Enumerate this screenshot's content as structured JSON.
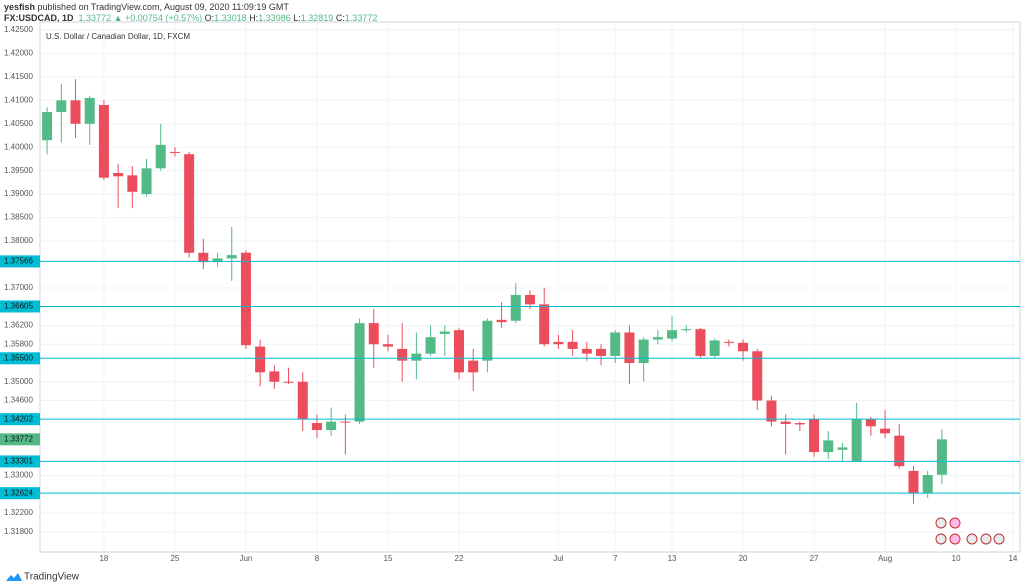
{
  "header": {
    "publisher": "yesfish",
    "published": "published on TradingView.com, August 09, 2020 11:09:19 GMT",
    "symbol": "FX:USDCAD, 1D",
    "arrow": "▲",
    "change": "+0.00754 (+0.57%)",
    "o": "O:",
    "h": "H:",
    "l": "L:",
    "c": "C:"
  },
  "footer": {
    "brand": "TradingView"
  },
  "chart_data": {
    "type": "candlestick",
    "title": "U.S. Dollar / Canadian Dollar, 1D, FXCM",
    "up_color": "#53b987",
    "down_color": "#eb4d5c",
    "grid": true,
    "open": [
      1.4015,
      1.4075,
      1.41,
      1.405,
      1.409,
      1.3945,
      1.394,
      1.39,
      1.3955,
      1.399,
      1.3985,
      1.3775,
      1.3755,
      1.3763,
      1.3775,
      1.3575,
      1.3522,
      1.35,
      1.35,
      1.3412,
      1.3397,
      1.3415,
      1.3415,
      1.3625,
      1.358,
      1.357,
      1.3545,
      1.356,
      1.3602,
      1.361,
      1.3545,
      1.3545,
      1.3632,
      1.363,
      1.3685,
      1.3665,
      1.3585,
      1.3585,
      1.357,
      1.357,
      1.3555,
      1.3605,
      1.354,
      1.359,
      1.3592,
      1.361,
      1.3612,
      1.3555,
      1.3585,
      1.3583,
      1.3565,
      1.346,
      1.3415,
      1.3412,
      1.342,
      1.335,
      1.3355,
      1.333,
      1.342,
      1.34,
      1.3385,
      1.331,
      1.3262,
      1.33018
    ],
    "high": [
      1.4085,
      1.4135,
      1.4145,
      1.411,
      1.41,
      1.3965,
      1.396,
      1.3975,
      1.405,
      1.4,
      1.399,
      1.3805,
      1.3775,
      1.383,
      1.378,
      1.359,
      1.3535,
      1.353,
      1.352,
      1.343,
      1.3445,
      1.343,
      1.3635,
      1.3655,
      1.36,
      1.3625,
      1.3605,
      1.362,
      1.362,
      1.3615,
      1.357,
      1.3635,
      1.367,
      1.371,
      1.3695,
      1.37,
      1.36,
      1.361,
      1.3585,
      1.358,
      1.361,
      1.362,
      1.3595,
      1.361,
      1.364,
      1.362,
      1.3615,
      1.3592,
      1.359,
      1.359,
      1.357,
      1.347,
      1.343,
      1.3415,
      1.343,
      1.3395,
      1.337,
      1.3455,
      1.3425,
      1.344,
      1.341,
      1.332,
      1.331,
      1.33986
    ],
    "low": [
      1.3985,
      1.401,
      1.402,
      1.4005,
      1.393,
      1.387,
      1.387,
      1.3895,
      1.395,
      1.398,
      1.3765,
      1.374,
      1.3745,
      1.3715,
      1.357,
      1.349,
      1.3485,
      1.3495,
      1.3395,
      1.338,
      1.3385,
      1.3345,
      1.341,
      1.353,
      1.3565,
      1.35,
      1.3505,
      1.3555,
      1.3555,
      1.3505,
      1.348,
      1.352,
      1.3615,
      1.3625,
      1.3655,
      1.3575,
      1.357,
      1.3555,
      1.3545,
      1.3535,
      1.354,
      1.3495,
      1.35,
      1.358,
      1.3585,
      1.3605,
      1.355,
      1.355,
      1.3575,
      1.3545,
      1.344,
      1.3405,
      1.3345,
      1.3395,
      1.334,
      1.3335,
      1.333,
      1.333,
      1.3385,
      1.338,
      1.3315,
      1.324,
      1.3252,
      1.32819
    ],
    "close": [
      1.4075,
      1.41,
      1.405,
      1.4105,
      1.3935,
      1.3938,
      1.3905,
      1.3955,
      1.4005,
      1.3988,
      1.3775,
      1.3755,
      1.3763,
      1.377,
      1.3578,
      1.352,
      1.35,
      1.3498,
      1.342,
      1.3397,
      1.3415,
      1.3413,
      1.3625,
      1.358,
      1.3575,
      1.3545,
      1.356,
      1.3595,
      1.3607,
      1.352,
      1.352,
      1.363,
      1.3627,
      1.3685,
      1.3665,
      1.358,
      1.358,
      1.357,
      1.356,
      1.3555,
      1.3605,
      1.354,
      1.359,
      1.3595,
      1.361,
      1.3612,
      1.3555,
      1.3588,
      1.3583,
      1.3565,
      1.346,
      1.3415,
      1.341,
      1.3409,
      1.335,
      1.3375,
      1.336,
      1.342,
      1.3405,
      1.339,
      1.332,
      1.3262,
      1.3301,
      1.33772
    ],
    "xlim": [
      -0.5,
      68.5
    ],
    "xticks": [
      {
        "value": 4,
        "label": "18"
      },
      {
        "value": 9,
        "label": "25"
      },
      {
        "value": 14,
        "label": "Jun"
      },
      {
        "value": 19,
        "label": "8"
      },
      {
        "value": 24,
        "label": "15"
      },
      {
        "value": 29,
        "label": "22"
      },
      {
        "value": 36,
        "label": "Jul"
      },
      {
        "value": 40,
        "label": "7"
      },
      {
        "value": 44,
        "label": "13"
      },
      {
        "value": 49,
        "label": "20"
      },
      {
        "value": 54,
        "label": "27"
      },
      {
        "value": 59,
        "label": "Aug"
      },
      {
        "value": 64,
        "label": "10"
      },
      {
        "value": 68,
        "label": "14"
      }
    ],
    "ylim": [
      1.3137,
      1.4267
    ],
    "yticks": [
      {
        "value": 1.425,
        "label": "1.42500"
      },
      {
        "value": 1.42,
        "label": "1.42000"
      },
      {
        "value": 1.415,
        "label": "1.41500"
      },
      {
        "value": 1.41,
        "label": "1.41000"
      },
      {
        "value": 1.405,
        "label": "1.40500"
      },
      {
        "value": 1.4,
        "label": "1.40000"
      },
      {
        "value": 1.395,
        "label": "1.39500"
      },
      {
        "value": 1.39,
        "label": "1.39000"
      },
      {
        "value": 1.385,
        "label": "1.38500"
      },
      {
        "value": 1.38,
        "label": "1.38000"
      },
      {
        "value": 1.37,
        "label": "1.37000"
      },
      {
        "value": 1.362,
        "label": "1.36200"
      },
      {
        "value": 1.358,
        "label": "1.35800"
      },
      {
        "value": 1.35,
        "label": "1.35000"
      },
      {
        "value": 1.346,
        "label": "1.34600"
      },
      {
        "value": 1.33,
        "label": "1.33000"
      },
      {
        "value": 1.322,
        "label": "1.32200"
      },
      {
        "value": 1.318,
        "label": "1.31800"
      }
    ],
    "level_color": "#00bcd4",
    "levels": [
      {
        "value": 1.37566,
        "label": "1.37566"
      },
      {
        "value": 1.36605,
        "label": "1.36605"
      },
      {
        "value": 1.355,
        "label": "1.35500"
      },
      {
        "value": 1.34202,
        "label": "1.34202"
      },
      {
        "value": 1.33301,
        "label": "1.33301"
      },
      {
        "value": 1.32624,
        "label": "1.32624"
      }
    ]
  }
}
